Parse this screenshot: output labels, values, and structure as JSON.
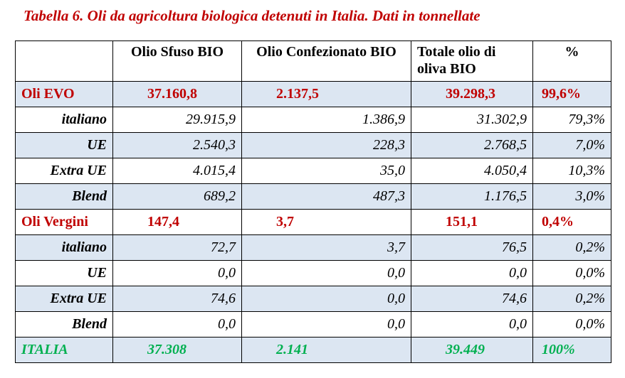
{
  "title": "Tabella 6. Oli da agricoltura biologica detenuti in Italia. Dati in tonnellate",
  "headers": [
    "",
    "Olio Sfuso BIO",
    "Olio Confezionato BIO",
    "Totale olio di oliva BIO",
    "%"
  ],
  "rows": [
    {
      "label": "Oli EVO",
      "v1": "37.160,8",
      "v2": "2.137,5",
      "v3": "39.298,3",
      "pct": "99,6%"
    },
    {
      "label": "italiano",
      "v1": "29.915,9",
      "v2": "1.386,9",
      "v3": "31.302,9",
      "pct": "79,3%"
    },
    {
      "label": "UE",
      "v1": "2.540,3",
      "v2": "228,3",
      "v3": "2.768,5",
      "pct": "7,0%"
    },
    {
      "label": "Extra UE",
      "v1": "4.015,4",
      "v2": "35,0",
      "v3": "4.050,4",
      "pct": "10,3%"
    },
    {
      "label": "Blend",
      "v1": "689,2",
      "v2": "487,3",
      "v3": "1.176,5",
      "pct": "3,0%"
    },
    {
      "label": "Oli Vergini",
      "v1": "147,4",
      "v2": "3,7",
      "v3": "151,1",
      "pct": "0,4%"
    },
    {
      "label": "italiano",
      "v1": "72,7",
      "v2": "3,7",
      "v3": "76,5",
      "pct": "0,2%"
    },
    {
      "label": "UE",
      "v1": "0,0",
      "v2": "0,0",
      "v3": "0,0",
      "pct": "0,0%"
    },
    {
      "label": "Extra UE",
      "v1": "74,6",
      "v2": "0,0",
      "v3": "74,6",
      "pct": "0,2%"
    },
    {
      "label": "Blend",
      "v1": "0,0",
      "v2": "0,0",
      "v3": "0,0",
      "pct": "0,0%"
    },
    {
      "label": "ITALIA",
      "v1": "37.308",
      "v2": "2.141",
      "v3": "39.449",
      "pct": "100%"
    }
  ],
  "colors": {
    "section": "#c00000",
    "total": "#00b050",
    "shade": "#dce6f2"
  }
}
